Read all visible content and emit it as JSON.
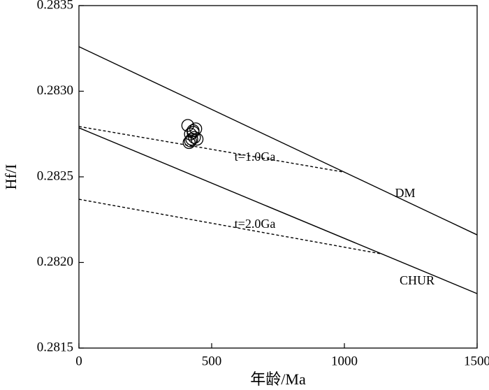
{
  "chart_data": {
    "type": "scatter",
    "x_label": "年龄/Ma",
    "y_label": "Hf/I",
    "xlim": [
      0,
      1500
    ],
    "xticks": [
      0,
      500,
      1000,
      1500
    ],
    "ylim": [
      0.2815,
      0.2835
    ],
    "yticks": [
      {
        "value": 0.2815,
        "label": "0.2815"
      },
      {
        "value": 0.282,
        "label": "0.2820"
      },
      {
        "value": 0.2825,
        "label": "0.2825"
      },
      {
        "value": 0.283,
        "label": "0.2830"
      },
      0.2835
    ],
    "series": [
      {
        "name": "DM",
        "kind": "line",
        "dash": false,
        "color": "#000",
        "x": [
          0,
          1500
        ],
        "values": [
          0.28326,
          0.282161
        ]
      },
      {
        "name": "CHUR",
        "kind": "line",
        "dash": false,
        "color": "#000",
        "x": [
          0,
          1500
        ],
        "values": [
          0.282786,
          0.281818
        ]
      },
      {
        "name": "t=1.0Ga",
        "kind": "line",
        "dash": true,
        "color": "#000",
        "x": [
          0,
          1000
        ],
        "values": [
          0.282794,
          0.282527
        ]
      },
      {
        "name": "t=2.0Ga",
        "kind": "line",
        "dash": true,
        "color": "#000",
        "x": [
          0,
          1140
        ],
        "values": [
          0.282369,
          0.28205
        ]
      },
      {
        "kind": "points",
        "color": "#000",
        "x": [
          410,
          420,
          430,
          440,
          425,
          445,
          415,
          435,
          420,
          430
        ],
        "values": [
          0.2828,
          0.28275,
          0.28277,
          0.28278,
          0.28272,
          0.28272,
          0.2827,
          0.28273,
          0.28271,
          0.28276
        ]
      }
    ]
  }
}
